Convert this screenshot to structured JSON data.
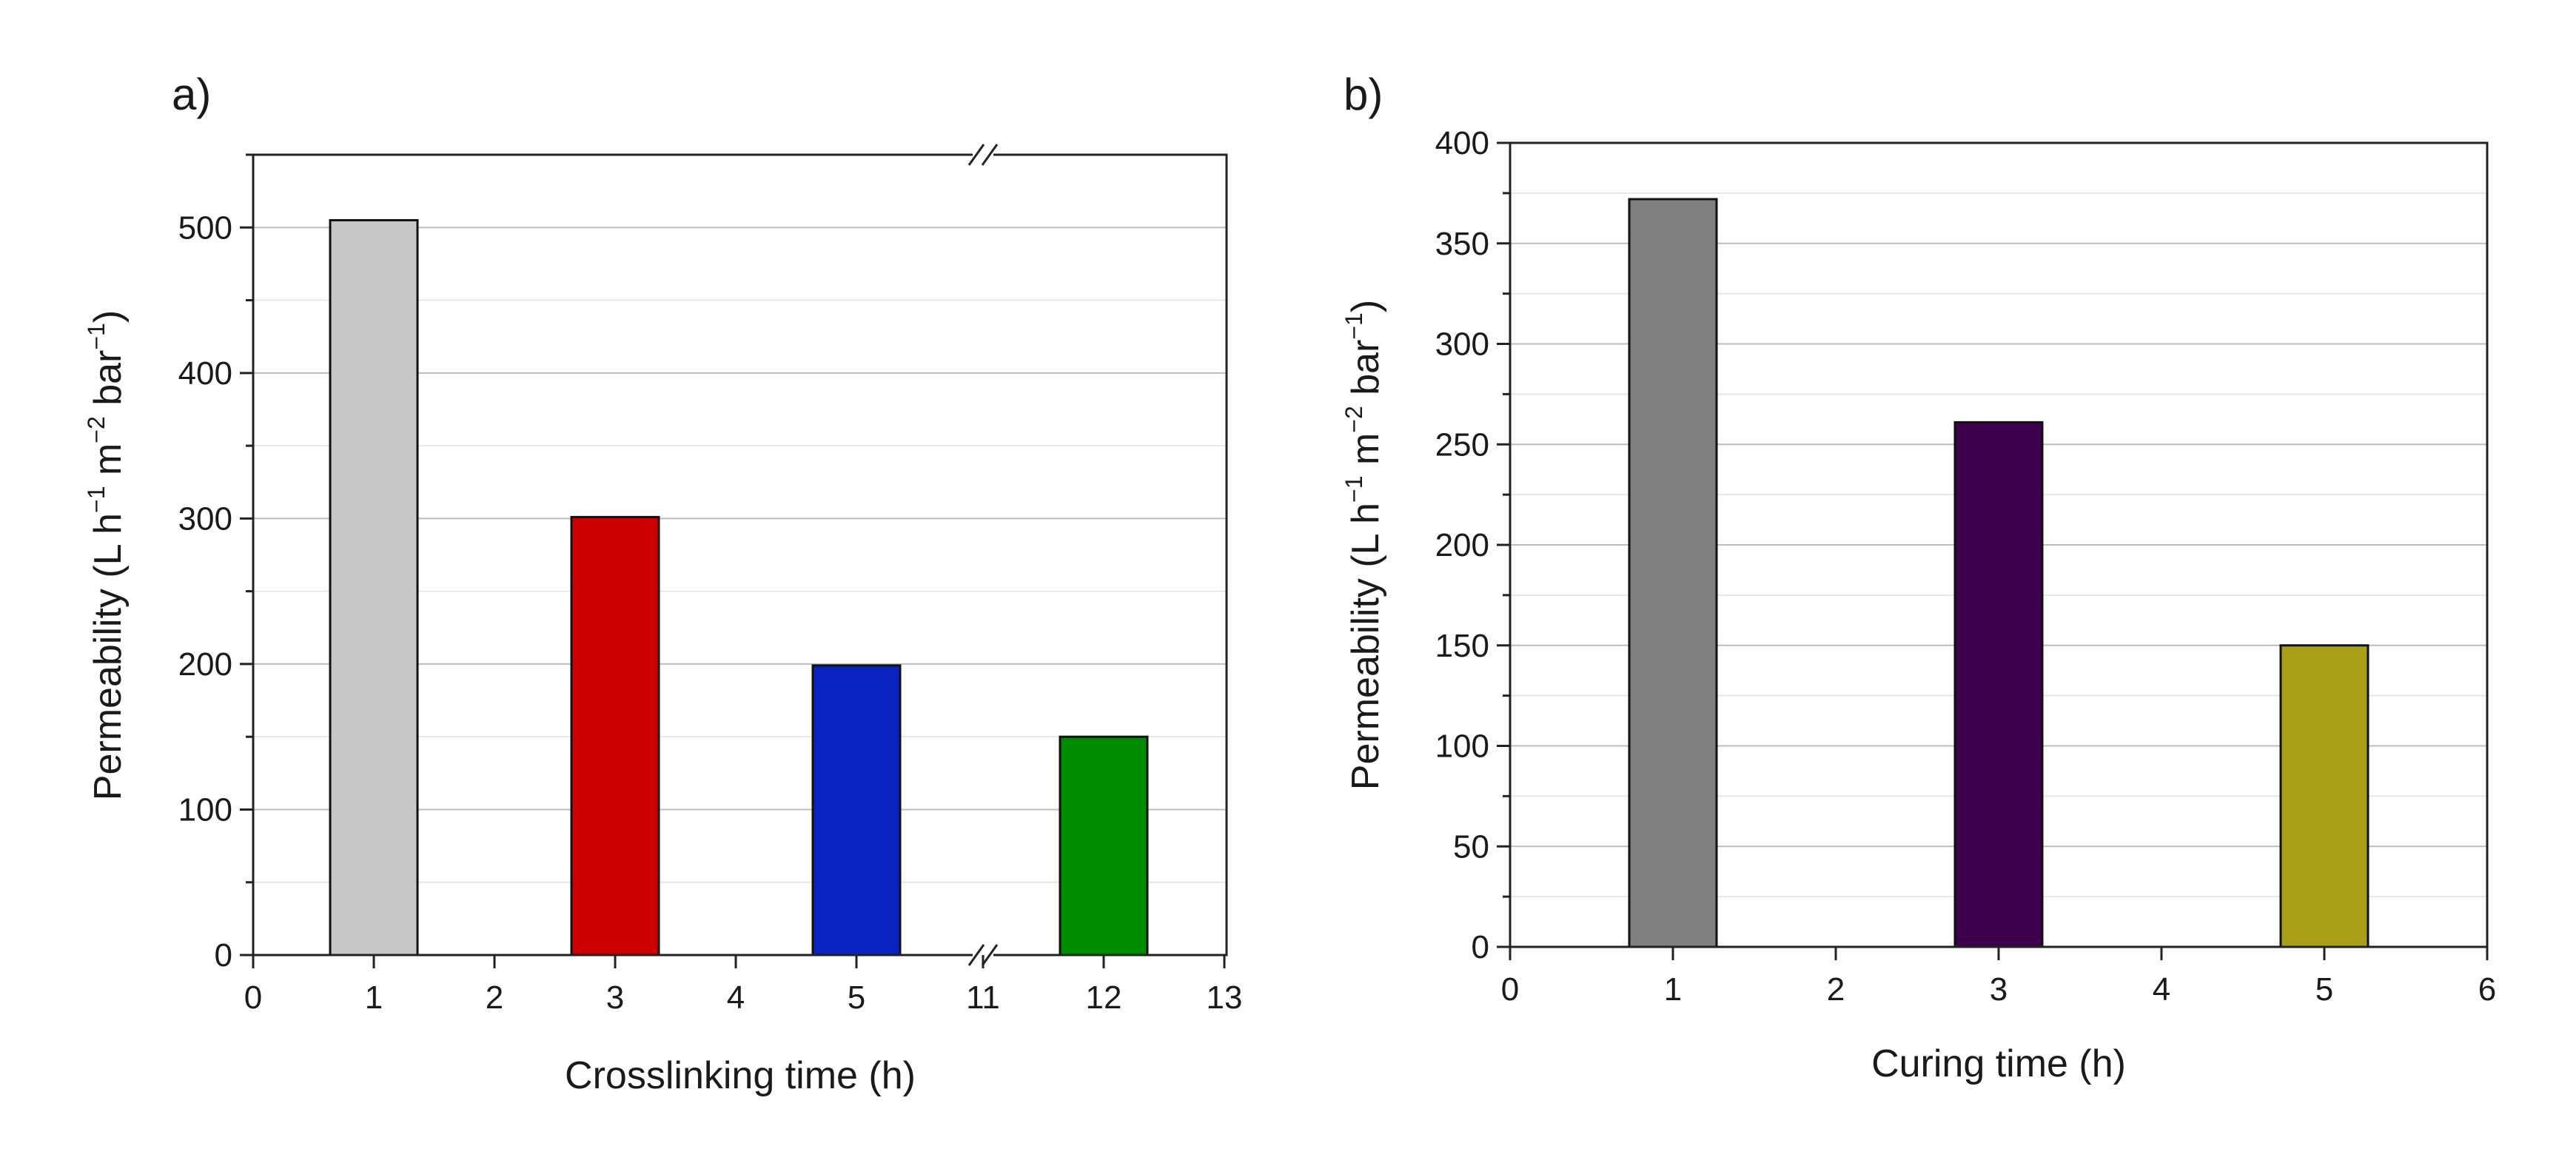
{
  "chart_data": [
    {
      "type": "bar",
      "panel_label": "a)",
      "title": "",
      "xlabel": "Crosslinking time (h)",
      "ylabel": {
        "text": "Permeability (L h",
        "exp1": "−1",
        "mid1": " m",
        "exp2": "−2",
        "mid2": " bar",
        "exp3": "−1",
        "end": ")"
      },
      "ylim": [
        0,
        550
      ],
      "y_ticks": [
        0,
        100,
        200,
        300,
        400,
        500
      ],
      "y_minor_step": 50,
      "x_axis_break": "5 to 11",
      "x_ticks": [
        {
          "label": "0",
          "x": 0
        },
        {
          "label": "1",
          "x": 1
        },
        {
          "label": "2",
          "x": 2
        },
        {
          "label": "3",
          "x": 3
        },
        {
          "label": "4",
          "x": 4
        },
        {
          "label": "5",
          "x": 5
        },
        {
          "label": "11",
          "x": 11
        },
        {
          "label": "12",
          "x": 12
        },
        {
          "label": "13",
          "x": 13
        }
      ],
      "categories": [
        "1",
        "3",
        "5",
        "12"
      ],
      "x": [
        1,
        3,
        5,
        12
      ],
      "values": [
        505,
        301,
        199,
        150
      ],
      "colors": [
        "#c8c8c8",
        "#cc0000",
        "#0a22c0",
        "#008c00"
      ],
      "grid": true
    },
    {
      "type": "bar",
      "panel_label": "b)",
      "title": "",
      "xlabel": "Curing time (h)",
      "ylabel": {
        "text": "Permeability (L h",
        "exp1": "−1",
        "mid1": " m",
        "exp2": "−2",
        "mid2": " bar",
        "exp3": "−1",
        "end": ")"
      },
      "ylim": [
        0,
        400
      ],
      "y_ticks": [
        0,
        50,
        100,
        150,
        200,
        250,
        300,
        350,
        400
      ],
      "y_minor_step": 25,
      "x_ticks": [
        {
          "label": "0",
          "x": 0
        },
        {
          "label": "1",
          "x": 1
        },
        {
          "label": "2",
          "x": 2
        },
        {
          "label": "3",
          "x": 3
        },
        {
          "label": "4",
          "x": 4
        },
        {
          "label": "5",
          "x": 5
        },
        {
          "label": "6",
          "x": 6
        }
      ],
      "categories": [
        "1",
        "3",
        "5"
      ],
      "x": [
        1,
        3,
        5
      ],
      "values": [
        372,
        261,
        150
      ],
      "colors": [
        "#808080",
        "#3c004c",
        "#a8a018"
      ],
      "grid": true
    }
  ]
}
